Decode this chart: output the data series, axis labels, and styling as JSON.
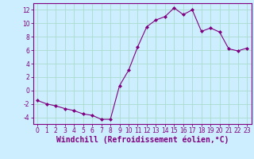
{
  "x": [
    0,
    1,
    2,
    3,
    4,
    5,
    6,
    7,
    8,
    9,
    10,
    11,
    12,
    13,
    14,
    15,
    16,
    17,
    18,
    19,
    20,
    21,
    22,
    23
  ],
  "y": [
    -1.5,
    -2.0,
    -2.3,
    -2.7,
    -3.0,
    -3.5,
    -3.7,
    -4.3,
    -4.3,
    0.7,
    3.0,
    6.5,
    9.5,
    10.5,
    11.0,
    12.3,
    11.3,
    12.0,
    8.8,
    9.3,
    8.7,
    6.2,
    5.9,
    6.3
  ],
  "line_color": "#800080",
  "marker": "D",
  "marker_size": 2,
  "bg_color": "#cceeff",
  "grid_color": "#aaddcc",
  "xlabel": "Windchill (Refroidissement éolien,°C)",
  "xlabel_color": "#800080",
  "tick_color": "#800080",
  "xlim": [
    -0.5,
    23.5
  ],
  "ylim": [
    -5,
    13
  ],
  "yticks": [
    -4,
    -2,
    0,
    2,
    4,
    6,
    8,
    10,
    12
  ],
  "xticks": [
    0,
    1,
    2,
    3,
    4,
    5,
    6,
    7,
    8,
    9,
    10,
    11,
    12,
    13,
    14,
    15,
    16,
    17,
    18,
    19,
    20,
    21,
    22,
    23
  ],
  "xtick_labels": [
    "0",
    "1",
    "2",
    "3",
    "4",
    "5",
    "6",
    "7",
    "8",
    "9",
    "10",
    "11",
    "12",
    "13",
    "14",
    "15",
    "16",
    "17",
    "18",
    "19",
    "20",
    "21",
    "22",
    "23"
  ],
  "spine_color": "#800080",
  "font_size_xlabel": 7,
  "font_size_ticks": 5.5
}
